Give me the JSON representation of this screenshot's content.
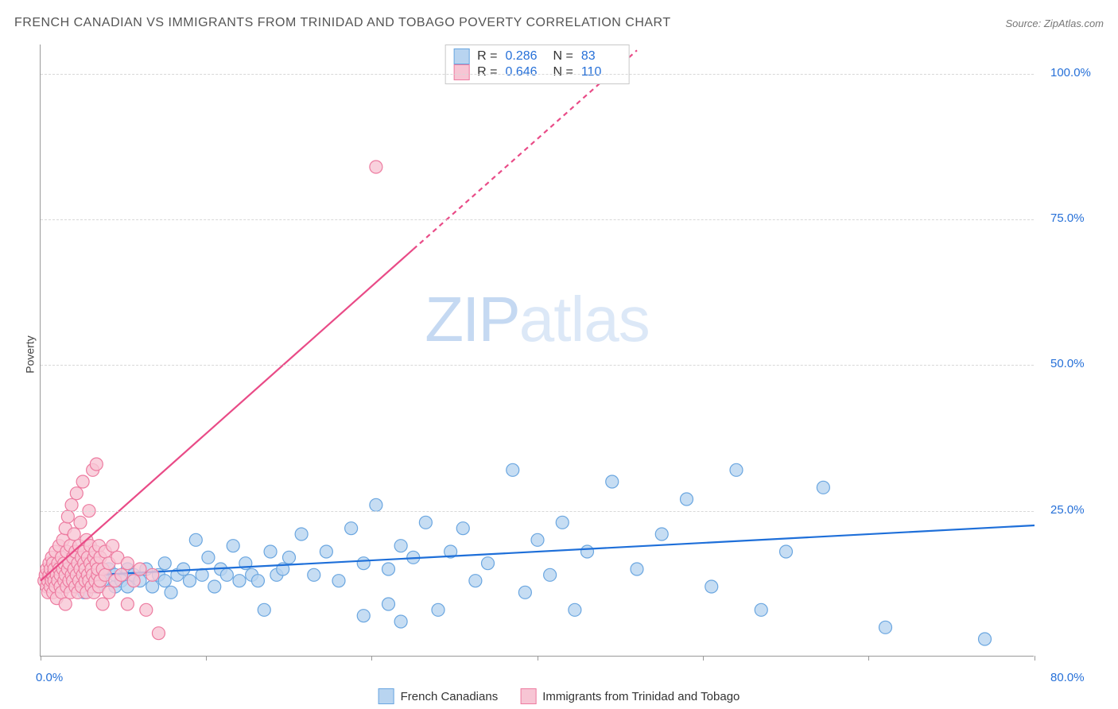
{
  "title": "FRENCH CANADIAN VS IMMIGRANTS FROM TRINIDAD AND TOBAGO POVERTY CORRELATION CHART",
  "source": "Source: ZipAtlas.com",
  "watermark": {
    "part1": "ZIP",
    "part2": "atlas"
  },
  "y_axis_label": "Poverty",
  "chart": {
    "type": "scatter",
    "background_color": "#ffffff",
    "grid_color": "#d8d8d8",
    "axis_color": "#999999",
    "xlim": [
      0,
      80
    ],
    "ylim": [
      0,
      105
    ],
    "y_ticks": [
      {
        "value": 25,
        "label": "25.0%"
      },
      {
        "value": 50,
        "label": "50.0%"
      },
      {
        "value": 75,
        "label": "75.0%"
      },
      {
        "value": 100,
        "label": "100.0%"
      }
    ],
    "x_ticks": [
      {
        "value": 0,
        "label": "0.0%"
      },
      {
        "value": 13.3,
        "label": ""
      },
      {
        "value": 26.6,
        "label": ""
      },
      {
        "value": 40,
        "label": ""
      },
      {
        "value": 53.3,
        "label": ""
      },
      {
        "value": 66.6,
        "label": ""
      },
      {
        "value": 80,
        "label": "80.0%"
      }
    ],
    "series": [
      {
        "id": "french_canadians",
        "label": "French Canadians",
        "marker_fill": "#b8d4f0",
        "marker_stroke": "#6aa6e0",
        "marker_radius": 8,
        "marker_opacity": 0.8,
        "line_color": "#1e6fd9",
        "line_width": 2.2,
        "r": "0.286",
        "n": "83",
        "trend": {
          "x1": 0,
          "y1": 13.5,
          "x2": 80,
          "y2": 22.5,
          "dashed_from_x": null
        },
        "points": [
          [
            1,
            14
          ],
          [
            1.5,
            13
          ],
          [
            2,
            15
          ],
          [
            2,
            12
          ],
          [
            2.5,
            14
          ],
          [
            3,
            13
          ],
          [
            3,
            16
          ],
          [
            3.5,
            11
          ],
          [
            4,
            14
          ],
          [
            4,
            15
          ],
          [
            4.5,
            12
          ],
          [
            5,
            13
          ],
          [
            5,
            14
          ],
          [
            5.5,
            15
          ],
          [
            6,
            12
          ],
          [
            6,
            14
          ],
          [
            6.5,
            13
          ],
          [
            7,
            15
          ],
          [
            7,
            12
          ],
          [
            7.5,
            14
          ],
          [
            8,
            13
          ],
          [
            8.5,
            15
          ],
          [
            9,
            12
          ],
          [
            9.5,
            14
          ],
          [
            10,
            13
          ],
          [
            10,
            16
          ],
          [
            10.5,
            11
          ],
          [
            11,
            14
          ],
          [
            11.5,
            15
          ],
          [
            12,
            13
          ],
          [
            12.5,
            20
          ],
          [
            13,
            14
          ],
          [
            13.5,
            17
          ],
          [
            14,
            12
          ],
          [
            14.5,
            15
          ],
          [
            15,
            14
          ],
          [
            15.5,
            19
          ],
          [
            16,
            13
          ],
          [
            16.5,
            16
          ],
          [
            17,
            14
          ],
          [
            17.5,
            13
          ],
          [
            18,
            8
          ],
          [
            18.5,
            18
          ],
          [
            19,
            14
          ],
          [
            19.5,
            15
          ],
          [
            20,
            17
          ],
          [
            21,
            21
          ],
          [
            22,
            14
          ],
          [
            23,
            18
          ],
          [
            24,
            13
          ],
          [
            25,
            22
          ],
          [
            26,
            7
          ],
          [
            26,
            16
          ],
          [
            27,
            26
          ],
          [
            28,
            15
          ],
          [
            28,
            9
          ],
          [
            29,
            19
          ],
          [
            29,
            6
          ],
          [
            30,
            17
          ],
          [
            31,
            23
          ],
          [
            32,
            8
          ],
          [
            33,
            18
          ],
          [
            34,
            22
          ],
          [
            35,
            13
          ],
          [
            36,
            16
          ],
          [
            38,
            32
          ],
          [
            39,
            11
          ],
          [
            40,
            20
          ],
          [
            41,
            14
          ],
          [
            42,
            23
          ],
          [
            43,
            8
          ],
          [
            44,
            18
          ],
          [
            46,
            30
          ],
          [
            48,
            15
          ],
          [
            50,
            21
          ],
          [
            52,
            27
          ],
          [
            54,
            12
          ],
          [
            56,
            32
          ],
          [
            58,
            8
          ],
          [
            60,
            18
          ],
          [
            63,
            29
          ],
          [
            68,
            5
          ],
          [
            76,
            3
          ]
        ]
      },
      {
        "id": "trinidad_tobago",
        "label": "Immigrants from Trinidad and Tobago",
        "marker_fill": "#f7c5d4",
        "marker_stroke": "#ed7ba0",
        "marker_radius": 8,
        "marker_opacity": 0.8,
        "line_color": "#e94b87",
        "line_width": 2.2,
        "r": "0.646",
        "n": "110",
        "trend": {
          "x1": 0,
          "y1": 13,
          "x2": 48,
          "y2": 104,
          "dashed_from_x": 30
        },
        "points": [
          [
            0.3,
            13
          ],
          [
            0.4,
            14
          ],
          [
            0.5,
            12
          ],
          [
            0.5,
            15
          ],
          [
            0.6,
            13
          ],
          [
            0.6,
            11
          ],
          [
            0.7,
            14
          ],
          [
            0.7,
            16
          ],
          [
            0.8,
            12
          ],
          [
            0.8,
            15
          ],
          [
            0.9,
            13
          ],
          [
            0.9,
            17
          ],
          [
            1,
            14
          ],
          [
            1,
            11
          ],
          [
            1,
            16
          ],
          [
            1.1,
            13
          ],
          [
            1.1,
            15
          ],
          [
            1.2,
            12
          ],
          [
            1.2,
            18
          ],
          [
            1.3,
            14
          ],
          [
            1.3,
            10
          ],
          [
            1.4,
            16
          ],
          [
            1.4,
            13
          ],
          [
            1.5,
            15
          ],
          [
            1.5,
            19
          ],
          [
            1.6,
            12
          ],
          [
            1.6,
            14
          ],
          [
            1.7,
            17
          ],
          [
            1.7,
            11
          ],
          [
            1.8,
            15
          ],
          [
            1.8,
            20
          ],
          [
            1.9,
            13
          ],
          [
            1.9,
            16
          ],
          [
            2,
            14
          ],
          [
            2,
            22
          ],
          [
            2,
            9
          ],
          [
            2.1,
            18
          ],
          [
            2.1,
            12
          ],
          [
            2.2,
            15
          ],
          [
            2.2,
            24
          ],
          [
            2.3,
            13
          ],
          [
            2.3,
            16
          ],
          [
            2.4,
            19
          ],
          [
            2.4,
            11
          ],
          [
            2.5,
            14
          ],
          [
            2.5,
            26
          ],
          [
            2.6,
            17
          ],
          [
            2.6,
            13
          ],
          [
            2.7,
            15
          ],
          [
            2.7,
            21
          ],
          [
            2.8,
            12
          ],
          [
            2.8,
            18
          ],
          [
            2.9,
            14
          ],
          [
            2.9,
            28
          ],
          [
            3,
            16
          ],
          [
            3,
            11
          ],
          [
            3.1,
            19
          ],
          [
            3.1,
            13
          ],
          [
            3.2,
            15
          ],
          [
            3.2,
            23
          ],
          [
            3.3,
            17
          ],
          [
            3.3,
            12
          ],
          [
            3.4,
            14
          ],
          [
            3.4,
            30
          ],
          [
            3.5,
            16
          ],
          [
            3.5,
            18
          ],
          [
            3.6,
            13
          ],
          [
            3.6,
            15
          ],
          [
            3.7,
            20
          ],
          [
            3.7,
            11
          ],
          [
            3.8,
            17
          ],
          [
            3.8,
            14
          ],
          [
            3.9,
            25
          ],
          [
            3.9,
            13
          ],
          [
            4,
            16
          ],
          [
            4,
            19
          ],
          [
            4.1,
            12
          ],
          [
            4.1,
            15
          ],
          [
            4.2,
            32
          ],
          [
            4.2,
            14
          ],
          [
            4.3,
            17
          ],
          [
            4.3,
            11
          ],
          [
            4.4,
            18
          ],
          [
            4.4,
            13
          ],
          [
            4.5,
            16
          ],
          [
            4.5,
            33
          ],
          [
            4.6,
            14
          ],
          [
            4.6,
            15
          ],
          [
            4.7,
            19
          ],
          [
            4.7,
            12
          ],
          [
            4.8,
            17
          ],
          [
            4.8,
            13
          ],
          [
            5,
            15
          ],
          [
            5,
            9
          ],
          [
            5.2,
            18
          ],
          [
            5.2,
            14
          ],
          [
            5.5,
            16
          ],
          [
            5.5,
            11
          ],
          [
            5.8,
            19
          ],
          [
            6,
            13
          ],
          [
            6.2,
            17
          ],
          [
            6.5,
            14
          ],
          [
            7,
            9
          ],
          [
            7,
            16
          ],
          [
            7.5,
            13
          ],
          [
            8,
            15
          ],
          [
            8.5,
            8
          ],
          [
            9,
            14
          ],
          [
            9.5,
            4
          ],
          [
            27,
            84
          ]
        ]
      }
    ]
  },
  "legend_bottom": [
    {
      "label": "French Canadians",
      "fill": "#b8d4f0",
      "stroke": "#6aa6e0"
    },
    {
      "label": "Immigrants from Trinidad and Tobago",
      "fill": "#f7c5d4",
      "stroke": "#ed7ba0"
    }
  ]
}
